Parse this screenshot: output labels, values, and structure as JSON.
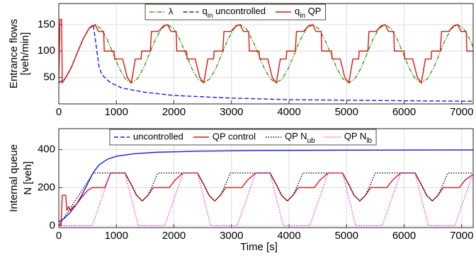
{
  "chart_data": [
    {
      "type": "line",
      "ylabel": [
        "Entrance flows",
        "[veh/min]"
      ],
      "xlim": [
        0,
        7200
      ],
      "xticks": [
        0,
        1000,
        2000,
        3000,
        4000,
        5000,
        6000,
        7000
      ],
      "ylim": [
        0,
        190
      ],
      "yticks": [
        50,
        100,
        150
      ],
      "grid": true,
      "legend": "top",
      "series": [
        {
          "name": "λ",
          "color": "#3c9c1c",
          "style": "dashdot",
          "x": [
            0,
            105,
            210,
            315,
            420,
            525,
            630,
            735,
            840,
            945,
            1050,
            1155,
            1260,
            1365,
            1470,
            1575,
            1680,
            1785,
            1890,
            1995,
            2100,
            2205,
            2310,
            2415,
            2520,
            2625,
            2730,
            2835,
            2940,
            3045,
            3150,
            3255,
            3360,
            3465,
            3570,
            3675,
            3780,
            3885,
            3990,
            4095,
            4200,
            4305,
            4410,
            4515,
            4620,
            4725,
            4830,
            4935,
            5040,
            5145,
            5250,
            5355,
            5460,
            5565,
            5670,
            5775,
            5880,
            5985,
            6090,
            6195,
            6300,
            6405,
            6510,
            6615,
            6720,
            6825,
            6930,
            7035,
            7140,
            7200
          ],
          "values": [
            40,
            47.4,
            67.5,
            95,
            122.5,
            142.6,
            150,
            142.6,
            122.5,
            95,
            67.5,
            47.4,
            40,
            47.4,
            67.5,
            95,
            122.5,
            142.6,
            150,
            142.6,
            122.5,
            95,
            67.5,
            47.4,
            40,
            47.4,
            67.5,
            95,
            122.5,
            142.6,
            150,
            142.6,
            122.5,
            95,
            67.5,
            47.4,
            40,
            47.4,
            67.5,
            95,
            122.5,
            142.6,
            150,
            142.6,
            122.5,
            95,
            67.5,
            47.4,
            40,
            47.4,
            67.5,
            95,
            122.5,
            142.6,
            150,
            142.6,
            122.5,
            95,
            67.5,
            47.4,
            40,
            47.4,
            67.5,
            95,
            122.5,
            142.6,
            150,
            142.6,
            122.5,
            107.2
          ]
        },
        {
          "name": "q_in uncontrolled",
          "color": "#1a1ae6",
          "style": "dashed",
          "x": [
            0,
            105,
            210,
            315,
            420,
            525,
            600,
            650,
            700,
            750,
            900,
            1100,
            1500,
            2000,
            3000,
            4000,
            5000,
            6000,
            7200
          ],
          "values": [
            40,
            47,
            67,
            95,
            122,
            143,
            150,
            110,
            70,
            55,
            40,
            30,
            22,
            16,
            11,
            8,
            7,
            6,
            5
          ]
        },
        {
          "name": "q_in QP",
          "color": "#e01414",
          "style": "solid",
          "x": [
            0,
            20,
            50,
            60,
            105,
            210,
            315,
            420,
            525,
            630,
            690,
            780,
            790,
            960,
            970,
            1110,
            1190,
            1260,
            1330,
            1430,
            1440,
            1590,
            1610,
            1730,
            1820,
            1890,
            1950,
            2040,
            2050,
            2220,
            2230,
            2370,
            2450,
            2520,
            2590,
            2690,
            2700,
            2850,
            2870,
            2990,
            3080,
            3150,
            3210,
            3300,
            3310,
            3480,
            3490,
            3630,
            3710,
            3780,
            3850,
            3950,
            3960,
            4110,
            4130,
            4250,
            4340,
            4410,
            4470,
            4560,
            4570,
            4740,
            4750,
            4890,
            4970,
            5040,
            5110,
            5210,
            5220,
            5370,
            5390,
            5510,
            5600,
            5670,
            5730,
            5820,
            5830,
            6000,
            6010,
            6150,
            6230,
            6300,
            6370,
            6470,
            6480,
            6630,
            6650,
            6770,
            6860,
            6930,
            6990,
            7080,
            7090,
            7200
          ],
          "values": [
            40,
            160,
            160,
            40,
            47,
            67,
            95,
            122,
            143,
            150,
            137,
            137,
            100,
            100,
            85,
            85,
            50,
            40,
            85,
            85,
            100,
            100,
            137,
            137,
            148,
            150,
            137,
            137,
            100,
            100,
            85,
            85,
            50,
            40,
            85,
            85,
            100,
            100,
            137,
            137,
            148,
            150,
            137,
            137,
            100,
            100,
            85,
            85,
            50,
            40,
            85,
            85,
            100,
            100,
            137,
            137,
            148,
            150,
            137,
            137,
            100,
            100,
            85,
            85,
            50,
            40,
            85,
            85,
            100,
            100,
            137,
            137,
            148,
            150,
            137,
            137,
            100,
            100,
            85,
            85,
            50,
            40,
            85,
            85,
            100,
            100,
            137,
            137,
            148,
            150,
            137,
            137,
            100,
            100
          ]
        }
      ]
    },
    {
      "type": "line",
      "ylabel": [
        "Internal queue",
        "N [veh]"
      ],
      "xlabel": "Time [s]",
      "xlim": [
        0,
        7200
      ],
      "xticks": [
        0,
        1000,
        2000,
        3000,
        4000,
        5000,
        6000,
        7000
      ],
      "ylim": [
        -10,
        510
      ],
      "yticks": [
        0,
        200,
        400
      ],
      "grid": true,
      "legend": "top",
      "series": [
        {
          "name": "uncontrolled",
          "color": "#1a1ae6",
          "style": "solid",
          "legend_style": "dashed",
          "x": [
            0,
            100,
            200,
            300,
            400,
            500,
            600,
            700,
            850,
            1000,
            1300,
            1700,
            2500,
            3500,
            5000,
            7200
          ],
          "values": [
            20,
            40,
            70,
            110,
            160,
            220,
            280,
            320,
            350,
            365,
            378,
            386,
            392,
            395,
            397,
            398
          ]
        },
        {
          "name": "QP control",
          "color": "#e01414",
          "style": "solid",
          "x": [
            0,
            40,
            60,
            120,
            140,
            170,
            200,
            250,
            300,
            400,
            500,
            580,
            800,
            900,
            1150,
            1270,
            1350,
            1450,
            1550,
            1640,
            1920,
            2020,
            2160,
            2410,
            2530,
            2610,
            2710,
            2810,
            2900,
            3180,
            3280,
            3420,
            3670,
            3790,
            3870,
            3970,
            4070,
            4160,
            4440,
            4540,
            4680,
            4930,
            5050,
            5130,
            5230,
            5330,
            5420,
            5700,
            5800,
            5940,
            6190,
            6310,
            6390,
            6490,
            6590,
            6680,
            6960,
            7060,
            7200
          ],
          "values": [
            5,
            5,
            160,
            160,
            80,
            100,
            80,
            100,
            110,
            150,
            185,
            200,
            200,
            277,
            277,
            210,
            160,
            130,
            160,
            200,
            200,
            240,
            277,
            277,
            210,
            160,
            130,
            160,
            200,
            200,
            240,
            277,
            277,
            210,
            160,
            130,
            160,
            200,
            200,
            240,
            277,
            277,
            210,
            160,
            130,
            160,
            200,
            200,
            240,
            277,
            277,
            210,
            160,
            130,
            160,
            200,
            200,
            240,
            270
          ]
        },
        {
          "name": "QP N_ub",
          "color": "#111111",
          "style": "dotted",
          "x": [
            0,
            600,
            1150,
            1270,
            1350,
            1450,
            1550,
            1640,
            1720,
            2410,
            2530,
            2610,
            2710,
            2810,
            2900,
            2980,
            3670,
            3790,
            3870,
            3970,
            4070,
            4160,
            4240,
            4930,
            5050,
            5130,
            5230,
            5330,
            5420,
            5500,
            6190,
            6310,
            6390,
            6490,
            6590,
            6680,
            6760,
            7200
          ],
          "values": [
            0,
            277,
            277,
            210,
            160,
            130,
            160,
            220,
            277,
            277,
            210,
            160,
            130,
            160,
            220,
            277,
            277,
            210,
            160,
            130,
            160,
            220,
            277,
            277,
            210,
            160,
            130,
            160,
            220,
            277,
            277,
            210,
            160,
            130,
            160,
            220,
            277,
            277
          ]
        },
        {
          "name": "QP N_lb",
          "color": "#e03ce0",
          "style": "dotted",
          "x": [
            0,
            580,
            900,
            1150,
            1380,
            1840,
            2160,
            2410,
            2640,
            3100,
            3420,
            3670,
            3900,
            4360,
            4680,
            4930,
            5160,
            5620,
            5940,
            6190,
            6420,
            6880,
            7200
          ],
          "values": [
            0,
            0,
            277,
            277,
            0,
            0,
            277,
            277,
            0,
            0,
            277,
            277,
            0,
            0,
            277,
            277,
            0,
            0,
            277,
            277,
            0,
            0,
            277
          ]
        }
      ]
    }
  ]
}
